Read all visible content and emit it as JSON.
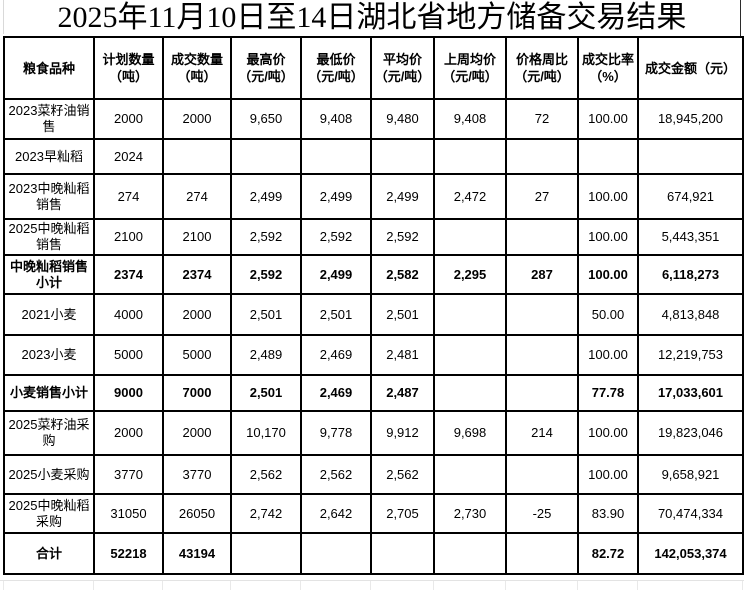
{
  "title": "2025年11月10日至14日湖北省地方储备交易结果",
  "table": {
    "headers": [
      "粮食品种",
      "计划数量\n（吨）",
      "成交数量\n（吨）",
      "最高价\n（元/吨）",
      "最低价\n（元/吨）",
      "平均价\n（元/吨）",
      "上周均价\n（元/吨）",
      "价格周比\n（元/吨）",
      "成交比率\n（%）",
      "成交金额（元）"
    ],
    "rows": [
      {
        "bold": false,
        "cells": [
          "2023菜籽油销\n售",
          "2000",
          "2000",
          "9,650",
          "9,408",
          "9,480",
          "9,408",
          "72",
          "100.00",
          "18,945,200"
        ]
      },
      {
        "bold": false,
        "cells": [
          "2023早籼稻",
          "2024",
          "",
          "",
          "",
          "",
          "",
          "",
          "",
          ""
        ]
      },
      {
        "bold": false,
        "cells": [
          "2023中晚籼稻\n销售",
          "274",
          "274",
          "2,499",
          "2,499",
          "2,499",
          "2,472",
          "27",
          "100.00",
          "674,921"
        ]
      },
      {
        "bold": false,
        "cells": [
          "2025中晚籼稻\n销售",
          "2100",
          "2100",
          "2,592",
          "2,592",
          "2,592",
          "",
          "",
          "100.00",
          "5,443,351"
        ]
      },
      {
        "bold": true,
        "cells": [
          "中晚籼稻销售\n小计",
          "2374",
          "2374",
          "2,592",
          "2,499",
          "2,582",
          "2,295",
          "287",
          "100.00",
          "6,118,273"
        ]
      },
      {
        "bold": false,
        "cells": [
          "2021小麦",
          "4000",
          "2000",
          "2,501",
          "2,501",
          "2,501",
          "",
          "",
          "50.00",
          "4,813,848"
        ]
      },
      {
        "bold": false,
        "cells": [
          "2023小麦",
          "5000",
          "5000",
          "2,489",
          "2,469",
          "2,481",
          "",
          "",
          "100.00",
          "12,219,753"
        ]
      },
      {
        "bold": true,
        "cells": [
          "小麦销售小计",
          "9000",
          "7000",
          "2,501",
          "2,469",
          "2,487",
          "",
          "",
          "77.78",
          "17,033,601"
        ]
      },
      {
        "bold": false,
        "cells": [
          "2025菜籽油采\n购",
          "2000",
          "2000",
          "10,170",
          "9,778",
          "9,912",
          "9,698",
          "214",
          "100.00",
          "19,823,046"
        ]
      },
      {
        "bold": false,
        "cells": [
          "2025小麦采购",
          "3770",
          "3770",
          "2,562",
          "2,562",
          "2,562",
          "",
          "",
          "100.00",
          "9,658,921"
        ]
      },
      {
        "bold": false,
        "cells": [
          "2025中晚籼稻\n采购",
          "31050",
          "26050",
          "2,742",
          "2,642",
          "2,705",
          "2,730",
          "-25",
          "83.90",
          "70,474,334"
        ]
      },
      {
        "bold": true,
        "cells": [
          "合计",
          "52218",
          "43194",
          "",
          "",
          "",
          "",
          "",
          "82.72",
          "142,053,374"
        ]
      }
    ]
  },
  "colors": {
    "border": "#000000",
    "text": "#000000",
    "background": "#ffffff",
    "outer_gridline": "#e3e3e3"
  }
}
